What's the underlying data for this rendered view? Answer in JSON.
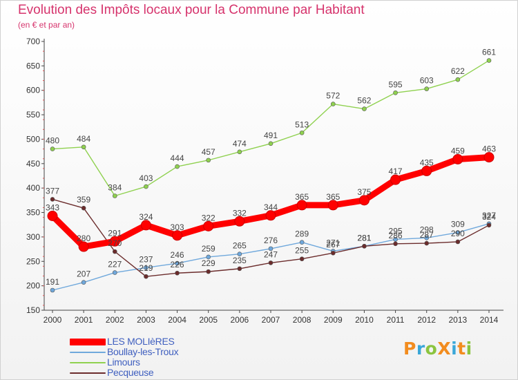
{
  "title": "Evolution des Impôts locaux pour la Commune par Habitant",
  "subtitle": "(en € et par an)",
  "logo": "ProXiti",
  "chart_data": {
    "type": "line",
    "title": "Evolution des Impôts locaux pour la Commune par Habitant",
    "subtitle": "(en € et par an)",
    "x": [
      "2000",
      "2001",
      "2002",
      "2003",
      "2004",
      "2005",
      "2006",
      "2007",
      "2008",
      "2009",
      "2010",
      "2011",
      "2012",
      "2013",
      "2014"
    ],
    "ylim": [
      150,
      700
    ],
    "yticks": [
      150,
      200,
      250,
      300,
      350,
      400,
      450,
      500,
      550,
      600,
      650,
      700
    ],
    "grid": false,
    "legend_position": "bottom-left",
    "series": [
      {
        "name": "LES MOLIèRES",
        "color": "#ff0000",
        "values": [
          343,
          280,
          291,
          324,
          303,
          322,
          332,
          344,
          365,
          365,
          375,
          417,
          435,
          459,
          463
        ]
      },
      {
        "name": "Boullay-les-Troux",
        "color": "#6fa8dc",
        "values": [
          191,
          207,
          227,
          237,
          246,
          259,
          265,
          276,
          289,
          271,
          281,
          295,
          298,
          309,
          327
        ]
      },
      {
        "name": "Limours",
        "color": "#8fd14f",
        "values": [
          480,
          484,
          384,
          403,
          444,
          457,
          474,
          491,
          513,
          572,
          562,
          595,
          603,
          622,
          661
        ]
      },
      {
        "name": "Pecqueuse",
        "color": "#6b2c2c",
        "values": [
          377,
          359,
          270,
          219,
          226,
          229,
          235,
          247,
          255,
          267,
          281,
          286,
          287,
          290,
          324
        ]
      }
    ]
  }
}
